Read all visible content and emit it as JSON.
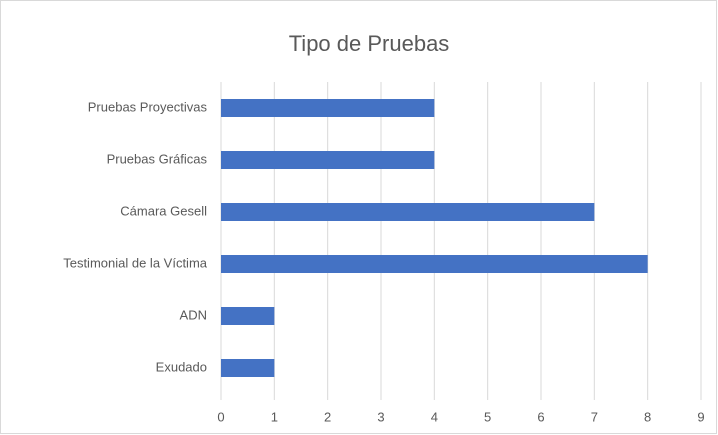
{
  "chart_data": {
    "type": "bar",
    "orientation": "horizontal",
    "title": "Tipo de Pruebas",
    "categories": [
      "Pruebas Proyectivas",
      "Pruebas Gráficas",
      "Cámara Gesell",
      "Testimonial de la Víctima",
      "ADN",
      "Exudado"
    ],
    "values": [
      4,
      4,
      7,
      8,
      1,
      1
    ],
    "color": "#4472c4",
    "xlim": [
      0,
      9
    ],
    "xticks": [
      0,
      1,
      2,
      3,
      4,
      5,
      6,
      7,
      8,
      9
    ],
    "grid": true
  }
}
